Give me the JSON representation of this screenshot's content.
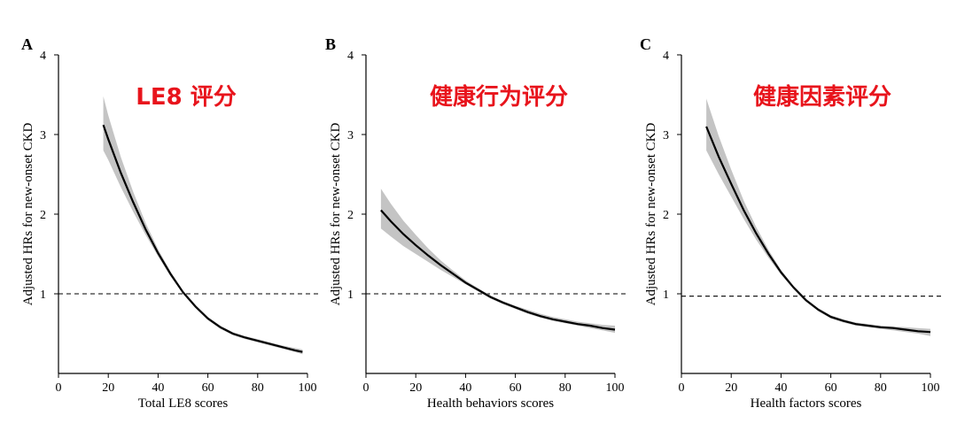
{
  "chart_data": [
    {
      "type": "line",
      "panel_label": "A",
      "title": "LE8 评分",
      "xlabel": "Total LE8 scores",
      "ylabel": "Adjusted HRs for new-onset CKD",
      "xlim": [
        0,
        100
      ],
      "ylim": [
        0,
        4
      ],
      "x_ticks": [
        "0",
        "20",
        "40",
        "60",
        "80",
        "100"
      ],
      "y_ticks": [
        "1",
        "2",
        "3",
        "4"
      ],
      "reference_line_y": 1,
      "series": [
        {
          "x": [
            18,
            20,
            25,
            30,
            35,
            40,
            45,
            50,
            55,
            60,
            65,
            70,
            75,
            80,
            85,
            90,
            95,
            98
          ],
          "values": [
            3.12,
            2.94,
            2.52,
            2.15,
            1.81,
            1.51,
            1.25,
            1.02,
            0.84,
            0.69,
            0.58,
            0.5,
            0.45,
            0.41,
            0.37,
            0.33,
            0.29,
            0.27
          ],
          "lower": [
            2.8,
            2.68,
            2.34,
            2.03,
            1.74,
            1.47,
            1.22,
            1.0,
            0.82,
            0.67,
            0.56,
            0.48,
            0.43,
            0.39,
            0.35,
            0.31,
            0.27,
            0.24
          ],
          "upper": [
            3.48,
            3.24,
            2.72,
            2.28,
            1.89,
            1.56,
            1.28,
            1.04,
            0.86,
            0.71,
            0.6,
            0.52,
            0.47,
            0.43,
            0.39,
            0.35,
            0.32,
            0.3
          ]
        }
      ]
    },
    {
      "type": "line",
      "panel_label": "B",
      "title": "健康行为评分",
      "xlabel": "Health behaviors scores",
      "ylabel": "Adjusted HRs for new-onset CKD",
      "xlim": [
        0,
        100
      ],
      "ylim": [
        0,
        4
      ],
      "x_ticks": [
        "0",
        "20",
        "40",
        "60",
        "80",
        "100"
      ],
      "y_ticks": [
        "1",
        "2",
        "3",
        "4"
      ],
      "reference_line_y": 1,
      "series": [
        {
          "x": [
            6,
            10,
            15,
            20,
            25,
            30,
            35,
            40,
            45,
            50,
            55,
            60,
            65,
            70,
            75,
            80,
            85,
            90,
            95,
            100
          ],
          "values": [
            2.05,
            1.91,
            1.75,
            1.61,
            1.48,
            1.36,
            1.25,
            1.14,
            1.05,
            0.96,
            0.89,
            0.83,
            0.77,
            0.72,
            0.68,
            0.65,
            0.62,
            0.6,
            0.57,
            0.55
          ],
          "lower": [
            1.82,
            1.72,
            1.6,
            1.5,
            1.4,
            1.3,
            1.21,
            1.12,
            1.03,
            0.94,
            0.87,
            0.81,
            0.75,
            0.7,
            0.66,
            0.63,
            0.6,
            0.57,
            0.54,
            0.51
          ],
          "upper": [
            2.32,
            2.13,
            1.92,
            1.74,
            1.57,
            1.42,
            1.29,
            1.17,
            1.07,
            0.98,
            0.91,
            0.85,
            0.8,
            0.75,
            0.71,
            0.68,
            0.65,
            0.63,
            0.61,
            0.6
          ]
        }
      ]
    },
    {
      "type": "line",
      "panel_label": "C",
      "title": "健康因素评分",
      "xlabel": "Health factors scores",
      "ylabel": "Adjusted HRs for new-onset CKD",
      "xlim": [
        0,
        100
      ],
      "ylim": [
        0,
        4
      ],
      "x_ticks": [
        "0",
        "20",
        "40",
        "60",
        "80",
        "100"
      ],
      "y_ticks": [
        "1",
        "2",
        "3",
        "4"
      ],
      "reference_line_y": 0.97,
      "series": [
        {
          "x": [
            10,
            15,
            20,
            25,
            30,
            35,
            40,
            45,
            50,
            55,
            60,
            65,
            70,
            75,
            80,
            85,
            90,
            95,
            100
          ],
          "values": [
            3.1,
            2.72,
            2.38,
            2.05,
            1.76,
            1.5,
            1.27,
            1.08,
            0.92,
            0.8,
            0.71,
            0.66,
            0.62,
            0.6,
            0.58,
            0.57,
            0.55,
            0.53,
            0.52
          ],
          "lower": [
            2.8,
            2.5,
            2.22,
            1.94,
            1.68,
            1.45,
            1.24,
            1.06,
            0.9,
            0.78,
            0.69,
            0.64,
            0.6,
            0.58,
            0.56,
            0.54,
            0.52,
            0.5,
            0.47
          ],
          "upper": [
            3.45,
            2.98,
            2.56,
            2.17,
            1.84,
            1.55,
            1.3,
            1.1,
            0.94,
            0.82,
            0.73,
            0.68,
            0.64,
            0.62,
            0.6,
            0.59,
            0.58,
            0.57,
            0.56
          ]
        }
      ]
    }
  ]
}
